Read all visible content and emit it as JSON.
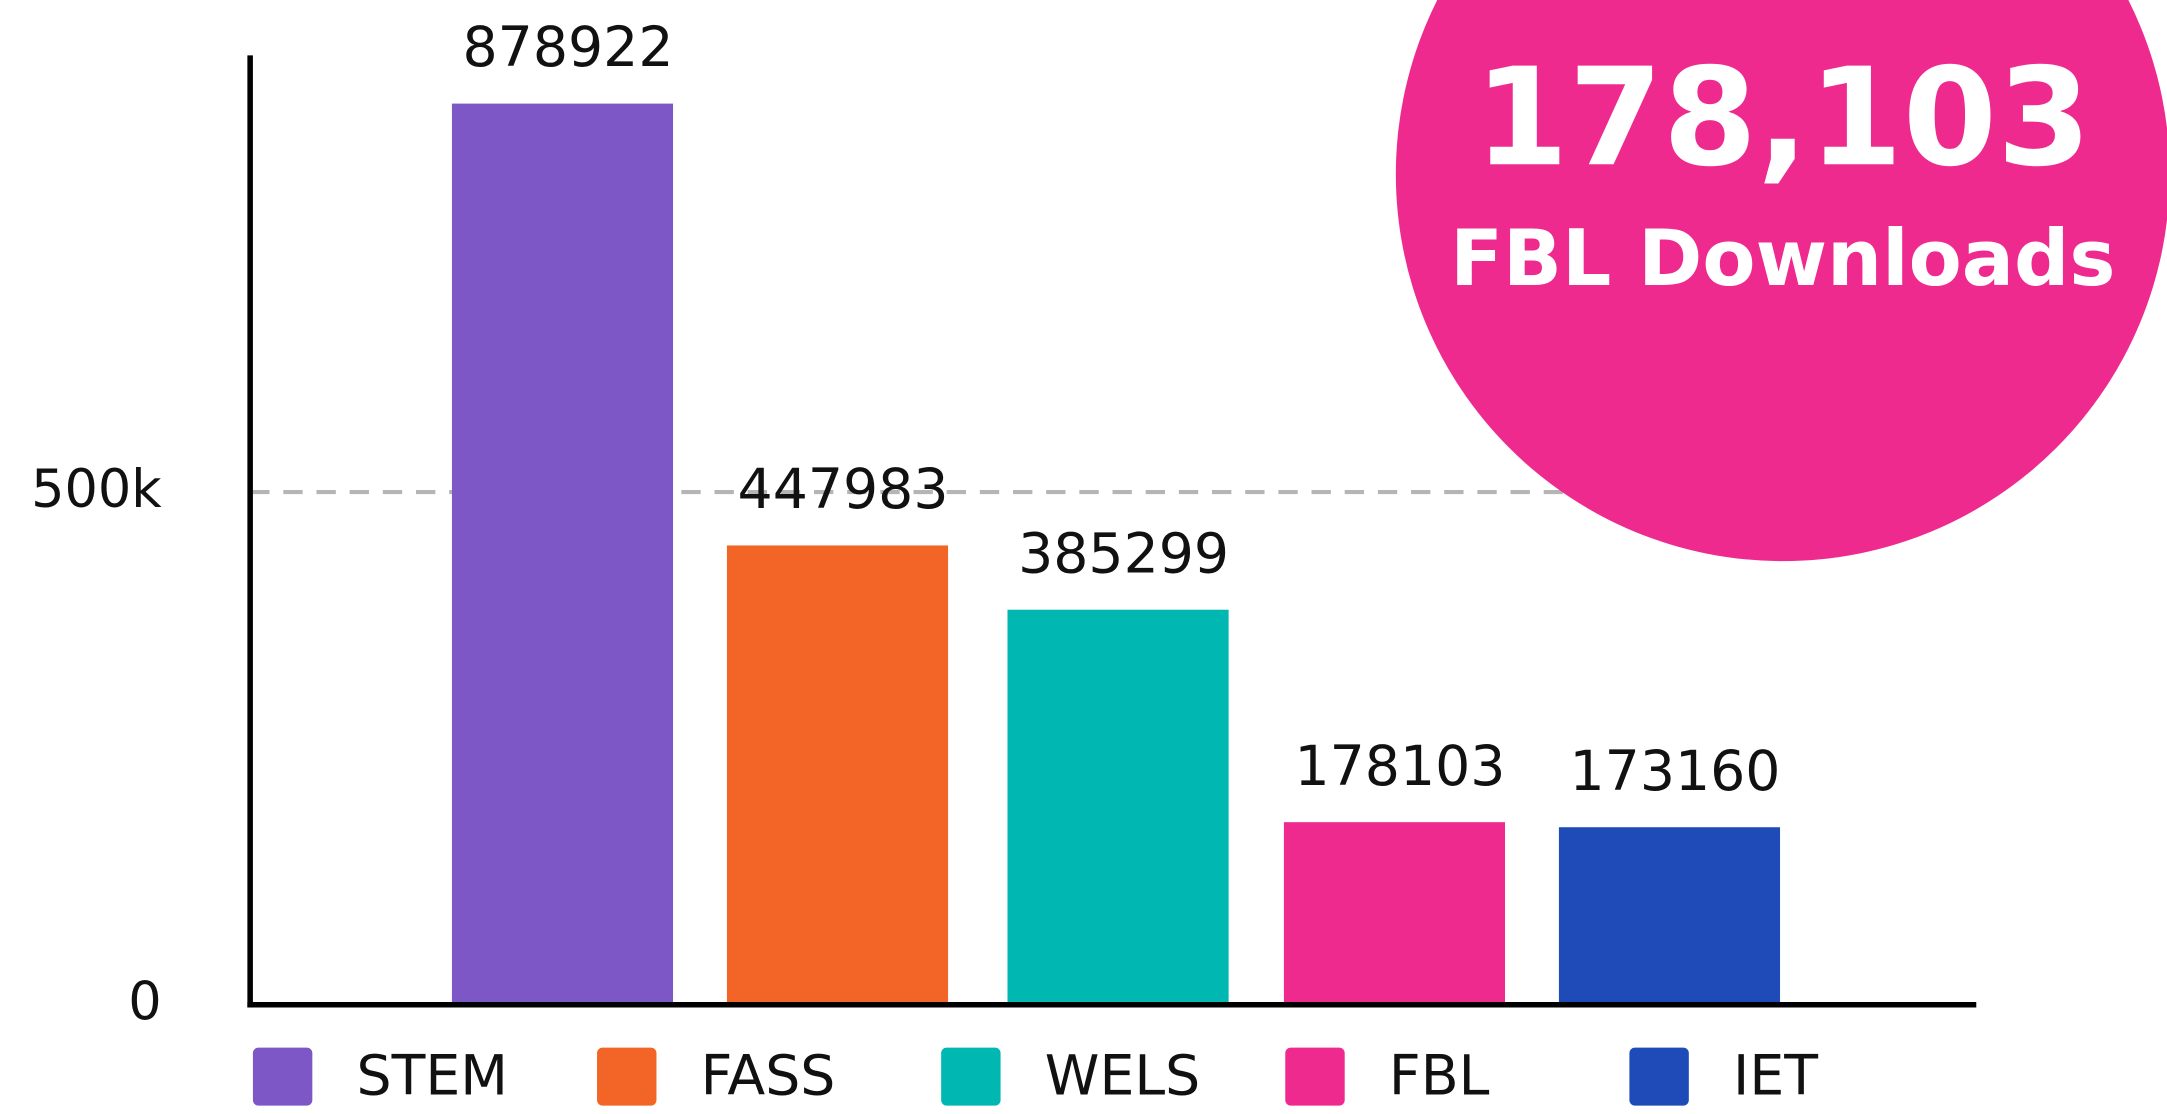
{
  "chart_data": {
    "type": "bar",
    "categories": [
      "STEM",
      "FASS",
      "WELS",
      "FBL",
      "IET"
    ],
    "values": [
      878922,
      447983,
      385299,
      178103,
      173160
    ],
    "colors": [
      "#7e57c6",
      "#f26526",
      "#00b7b2",
      "#ef2a8f",
      "#1f4bb8"
    ],
    "ylim": [
      0,
      926000
    ],
    "yticks": [
      0,
      {
        "value": 500000,
        "label": "500k"
      }
    ],
    "grid": true,
    "legend": "bottom",
    "annotations": [
      "178,103",
      "FBL Downloads"
    ],
    "annotation_color": "#ef2a8f"
  }
}
